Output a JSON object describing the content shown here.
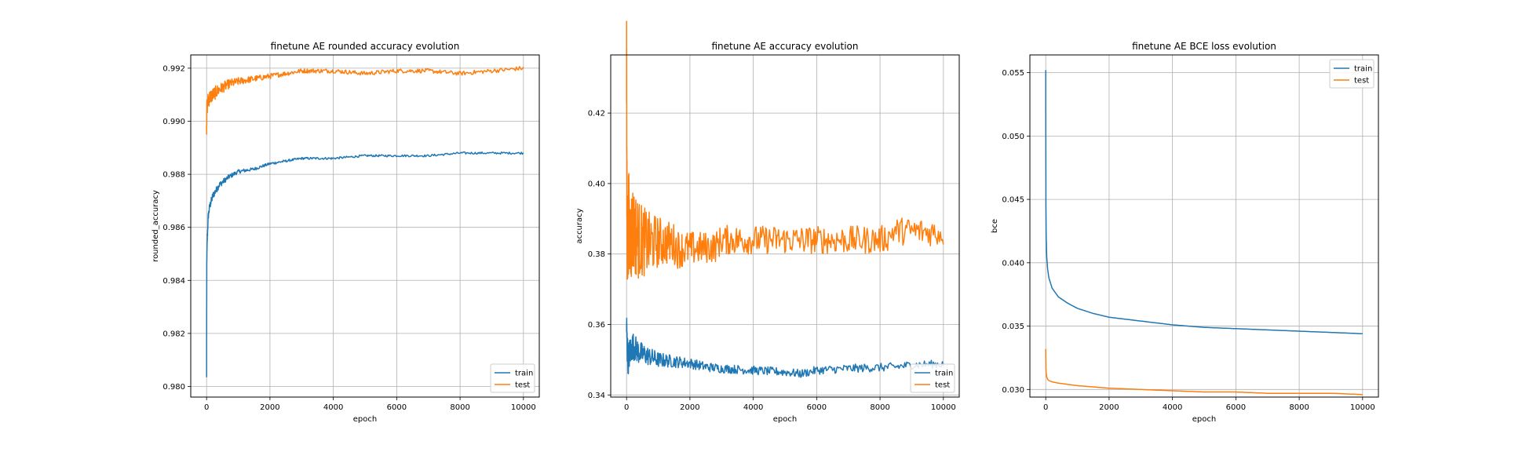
{
  "chart_data": [
    {
      "type": "line",
      "title": "finetune AE rounded accuracy evolution",
      "xlabel": "epoch",
      "ylabel": "rounded_accuracy",
      "xlim": [
        -500,
        10500
      ],
      "ylim": [
        0.9796,
        0.9925
      ],
      "xticks": [
        0,
        2000,
        4000,
        6000,
        8000,
        10000
      ],
      "xtick_labels": [
        "0",
        "2000",
        "4000",
        "6000",
        "8000",
        "10000"
      ],
      "yticks": [
        0.98,
        0.982,
        0.984,
        0.986,
        0.988,
        0.99,
        0.992
      ],
      "ytick_labels": [
        "0.980",
        "0.982",
        "0.984",
        "0.986",
        "0.988",
        "0.990",
        "0.992"
      ],
      "grid": true,
      "legend_position": "lower-right",
      "series": [
        {
          "name": "train",
          "color": "#1f77b4",
          "noise": 4e-05,
          "x": [
            0,
            5,
            20,
            50,
            100,
            200,
            400,
            700,
            1000,
            1500,
            2000,
            2500,
            3000,
            3500,
            4000,
            5000,
            6000,
            7000,
            8000,
            9000,
            10000
          ],
          "y": [
            0.9803,
            0.9846,
            0.9855,
            0.9864,
            0.9868,
            0.9872,
            0.9876,
            0.9879,
            0.9881,
            0.9882,
            0.9884,
            0.9885,
            0.9886,
            0.9886,
            0.9886,
            0.9887,
            0.9887,
            0.9887,
            0.9888,
            0.9888,
            0.9888
          ]
        },
        {
          "name": "test",
          "color": "#ff7f0e",
          "noise": 8e-05,
          "x": [
            0,
            10,
            50,
            100,
            200,
            400,
            700,
            1000,
            1500,
            2000,
            2500,
            3000,
            4000,
            5000,
            6000,
            7000,
            8000,
            9000,
            10000
          ],
          "y": [
            0.9898,
            0.9905,
            0.9908,
            0.9909,
            0.991,
            0.9912,
            0.9914,
            0.9915,
            0.9916,
            0.9917,
            0.9918,
            0.9919,
            0.9919,
            0.9918,
            0.9919,
            0.9919,
            0.9918,
            0.9919,
            0.992
          ]
        }
      ]
    },
    {
      "type": "line",
      "title": "finetune AE accuracy evolution",
      "xlabel": "epoch",
      "ylabel": "accuracy",
      "xlim": [
        -500,
        10500
      ],
      "ylim": [
        0.3394,
        0.4365
      ],
      "xticks": [
        0,
        2000,
        4000,
        6000,
        8000,
        10000
      ],
      "xtick_labels": [
        "0",
        "2000",
        "4000",
        "6000",
        "8000",
        "10000"
      ],
      "yticks": [
        0.34,
        0.36,
        0.38,
        0.4,
        0.42
      ],
      "ytick_labels": [
        "0.34",
        "0.36",
        "0.38",
        "0.40",
        "0.42"
      ],
      "grid": true,
      "legend_position": "lower-right",
      "series": [
        {
          "name": "train",
          "color": "#1f77b4",
          "noise": 0.0012,
          "x": [
            0,
            20,
            50,
            100,
            200,
            400,
            700,
            1000,
            1500,
            2000,
            2500,
            3000,
            4000,
            5000,
            5500,
            6000,
            7000,
            8000,
            8500,
            9000,
            10000
          ],
          "y": [
            0.36,
            0.354,
            0.35,
            0.352,
            0.354,
            0.352,
            0.351,
            0.35,
            0.3495,
            0.349,
            0.348,
            0.3475,
            0.347,
            0.3465,
            0.346,
            0.347,
            0.3475,
            0.3478,
            0.348,
            0.3485,
            0.3488
          ]
        },
        {
          "name": "test",
          "color": "#ff7f0e",
          "noise": 0.004,
          "x": [
            0,
            10,
            30,
            60,
            100,
            200,
            400,
            700,
            1000,
            1500,
            1600,
            2000,
            2800,
            3000,
            4000,
            6000,
            8000,
            8300,
            8400,
            9000,
            10000
          ],
          "y": [
            0.433,
            0.4,
            0.38,
            0.39,
            0.385,
            0.387,
            0.384,
            0.383,
            0.3835,
            0.383,
            0.3815,
            0.3815,
            0.382,
            0.384,
            0.384,
            0.384,
            0.384,
            0.385,
            0.3865,
            0.3865,
            0.386
          ]
        }
      ]
    },
    {
      "type": "line",
      "title": "finetune AE BCE loss evolution",
      "xlabel": "epoch",
      "ylabel": "bce",
      "xlim": [
        -500,
        10500
      ],
      "ylim": [
        0.0294,
        0.0564
      ],
      "xticks": [
        0,
        2000,
        4000,
        6000,
        8000,
        10000
      ],
      "xtick_labels": [
        "0",
        "2000",
        "4000",
        "6000",
        "8000",
        "10000"
      ],
      "yticks": [
        0.03,
        0.035,
        0.04,
        0.045,
        0.05,
        0.055
      ],
      "ytick_labels": [
        "0.030",
        "0.035",
        "0.040",
        "0.045",
        "0.050",
        "0.055"
      ],
      "grid": true,
      "legend_position": "upper-right",
      "series": [
        {
          "name": "train",
          "color": "#1f77b4",
          "noise": 0,
          "x": [
            0,
            5,
            15,
            30,
            60,
            100,
            200,
            400,
            700,
            1000,
            1500,
            2000,
            3000,
            4000,
            5000,
            6000,
            7000,
            8000,
            9000,
            10000
          ],
          "y": [
            0.0552,
            0.045,
            0.042,
            0.0405,
            0.0395,
            0.0388,
            0.038,
            0.0373,
            0.0368,
            0.0364,
            0.036,
            0.0357,
            0.0354,
            0.0351,
            0.0349,
            0.0348,
            0.0347,
            0.0346,
            0.0345,
            0.0344
          ]
        },
        {
          "name": "test",
          "color": "#ff7f0e",
          "noise": 0,
          "x": [
            0,
            5,
            15,
            30,
            60,
            100,
            200,
            400,
            700,
            1000,
            1500,
            2000,
            3000,
            4000,
            5000,
            6000,
            7000,
            8000,
            9000,
            10000
          ],
          "y": [
            0.0332,
            0.0318,
            0.0313,
            0.031,
            0.0308,
            0.0307,
            0.0306,
            0.0305,
            0.0304,
            0.0303,
            0.0302,
            0.0301,
            0.03,
            0.0299,
            0.0298,
            0.0298,
            0.0297,
            0.0297,
            0.0297,
            0.0296
          ]
        }
      ]
    }
  ]
}
